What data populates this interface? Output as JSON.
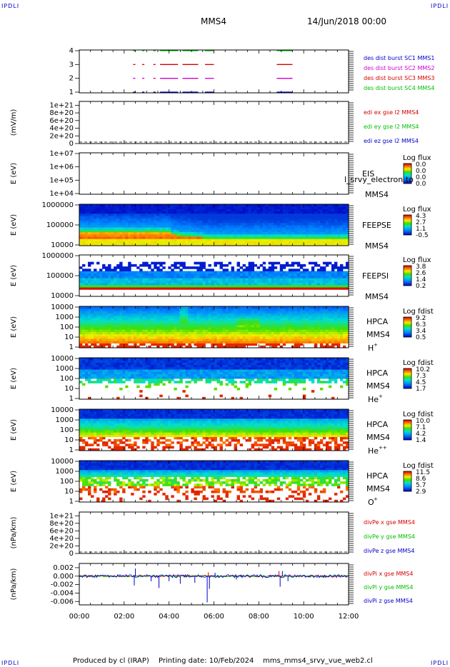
{
  "header": {
    "corner_label": "IPDLI",
    "spacecraft": "MMS4",
    "datetime": "14/Jun/2018 00:00"
  },
  "footer": {
    "produced_by": "Produced by cl (IRAP)",
    "printing_date": "Printing date: 10/Feb/2024",
    "script_name": "mms_mms4_srvy_vue_web2.cl"
  },
  "time_axis": {
    "start_hours": 0,
    "end_hours": 12,
    "tick_labels": [
      "00:00",
      "02:00",
      "04:00",
      "06:00",
      "08:00",
      "10:00",
      "12:00"
    ]
  },
  "colors": {
    "red": "#d40000",
    "green": "#00c000",
    "blue": "#0000c8",
    "magenta": "#d000d0"
  },
  "chart_data": [
    {
      "id": "burst",
      "type": "line",
      "yticks": [
        "1",
        "2",
        "3",
        "4"
      ],
      "ylim": [
        0.5,
        4.5
      ],
      "series": [
        {
          "name": "des dist burst SC1 MMS1",
          "color": "#0000c8",
          "level": 1
        },
        {
          "name": "des dist burst SC2 MMS2",
          "color": "#d000d0",
          "level": 2
        },
        {
          "name": "des dist burst SC3 MMS3",
          "color": "#d40000",
          "level": 3
        },
        {
          "name": "des dist burst SC4 MMS4",
          "color": "#00c000",
          "level": 4
        }
      ],
      "intervals_hours": [
        [
          2.4,
          2.5
        ],
        [
          2.8,
          2.9
        ],
        [
          3.3,
          3.4
        ],
        [
          3.6,
          4.4
        ],
        [
          4.6,
          5.3
        ],
        [
          5.6,
          6.0
        ],
        [
          8.8,
          9.5
        ]
      ]
    },
    {
      "id": "edi",
      "type": "line",
      "ylabel": "(mV/m)",
      "yticks": [
        "0",
        "2e+20",
        "4e+20",
        "6e+20",
        "8e+20",
        "1e+21"
      ],
      "ylim": [
        0,
        1.1e+21
      ],
      "zero_line": true,
      "series": [
        {
          "name": "edi ex gse l2 MMS4",
          "color": "#d40000"
        },
        {
          "name": "edi ey gse l2 MMS4",
          "color": "#00c000"
        },
        {
          "name": "edi ez gse l2 MMS4",
          "color": "#0000c8"
        }
      ]
    },
    {
      "id": "eis",
      "type": "heatmap",
      "ylabel": "E (eV)",
      "yticks": [
        "1e+04",
        "1e+05",
        "1e+06",
        "1e+07"
      ],
      "instrument": "EIS",
      "overlay_text": "l_srvy_electron to",
      "spacecraft": "MMS4",
      "colorbar": {
        "title": "Log flux",
        "labels": [
          "0.0",
          "0.0",
          "0.0",
          "0.0"
        ]
      }
    },
    {
      "id": "feepse",
      "type": "heatmap",
      "ylabel": "E (eV)",
      "yticks": [
        "10000",
        "100000",
        "1000000"
      ],
      "instrument": "FEEPSE",
      "spacecraft": "MMS4",
      "colorbar": {
        "title": "Log flux",
        "labels": [
          "4.3",
          "2.7",
          "1.1",
          "-0.5"
        ]
      }
    },
    {
      "id": "feepsi",
      "type": "heatmap",
      "ylabel": "E (eV)",
      "yticks": [
        "10000",
        "100000",
        "1000000"
      ],
      "instrument": "FEEPSI",
      "spacecraft": "MMS4",
      "colorbar": {
        "title": "Log flux",
        "labels": [
          "3.8",
          "2.6",
          "1.4",
          "0.2"
        ]
      }
    },
    {
      "id": "hpca_h",
      "type": "heatmap",
      "ylabel": "E (eV)",
      "yticks": [
        "1",
        "10",
        "100",
        "1000",
        "10000"
      ],
      "instrument": "HPCA",
      "spacecraft": "MMS4",
      "species": "H",
      "species_sup": "+",
      "colorbar": {
        "title": "Log fdist",
        "labels": [
          "9.2",
          "6.3",
          "3.4",
          "0.5"
        ]
      }
    },
    {
      "id": "hpca_he",
      "type": "heatmap",
      "ylabel": "E (eV)",
      "yticks": [
        "1",
        "10",
        "100",
        "1000",
        "10000"
      ],
      "instrument": "HPCA",
      "spacecraft": "MMS4",
      "species": "He",
      "species_sup": "+",
      "colorbar": {
        "title": "Log fdist",
        "labels": [
          "10.2",
          "7.3",
          "4.5",
          "1.7"
        ]
      }
    },
    {
      "id": "hpca_hepp",
      "type": "heatmap",
      "ylabel": "E (eV)",
      "yticks": [
        "1",
        "10",
        "100",
        "1000",
        "10000"
      ],
      "instrument": "HPCA",
      "spacecraft": "MMS4",
      "species": "He",
      "species_sup": "++",
      "colorbar": {
        "title": "Log fdist",
        "labels": [
          "10.0",
          "7.1",
          "4.2",
          "1.4"
        ]
      }
    },
    {
      "id": "hpca_o",
      "type": "heatmap",
      "ylabel": "E (eV)",
      "yticks": [
        "1",
        "10",
        "100",
        "1000",
        "10000"
      ],
      "instrument": "HPCA",
      "spacecraft": "MMS4",
      "species": "O",
      "species_sup": "+",
      "colorbar": {
        "title": "Log fdist",
        "labels": [
          "11.5",
          "8.6",
          "5.7",
          "2.9"
        ]
      }
    },
    {
      "id": "divpe",
      "type": "line",
      "ylabel": "(nPa/km)",
      "yticks": [
        "0",
        "2e+20",
        "4e+20",
        "6e+20",
        "8e+20",
        "1e+21"
      ],
      "ylim": [
        0,
        1.1e+21
      ],
      "zero_line": true,
      "series": [
        {
          "name": "divPe x gse MMS4",
          "color": "#d40000"
        },
        {
          "name": "divPe y gse MMS4",
          "color": "#00c000"
        },
        {
          "name": "divPe z gse MMS4",
          "color": "#0000c8"
        }
      ]
    },
    {
      "id": "divpi",
      "type": "line",
      "ylabel": "(nPa/km)",
      "yticks": [
        "-0.006",
        "-0.004",
        "-0.002",
        "0.000",
        "0.002"
      ],
      "ylim": [
        -0.0068,
        0.003
      ],
      "series": [
        {
          "name": "divPi x gse MMS4",
          "color": "#d40000"
        },
        {
          "name": "divPi y gse MMS4",
          "color": "#00c000"
        },
        {
          "name": "divPi z gse MMS4",
          "color": "#0000c8"
        }
      ],
      "spikes": [
        {
          "t": 2.45,
          "v": -0.0022
        },
        {
          "t": 2.5,
          "v": 0.0018
        },
        {
          "t": 3.2,
          "v": -0.0012
        },
        {
          "t": 3.55,
          "v": -0.0028
        },
        {
          "t": 4.0,
          "v": -0.0012
        },
        {
          "t": 4.5,
          "v": -0.0018
        },
        {
          "t": 5.15,
          "v": -0.0016
        },
        {
          "t": 5.7,
          "v": -0.0062
        },
        {
          "t": 5.8,
          "v": -0.003
        },
        {
          "t": 6.05,
          "v": 0.0008
        },
        {
          "t": 7.0,
          "v": -0.0008
        },
        {
          "t": 8.95,
          "v": -0.0025
        },
        {
          "t": 9.05,
          "v": 0.0012
        },
        {
          "t": 9.3,
          "v": -0.0012
        }
      ]
    }
  ]
}
